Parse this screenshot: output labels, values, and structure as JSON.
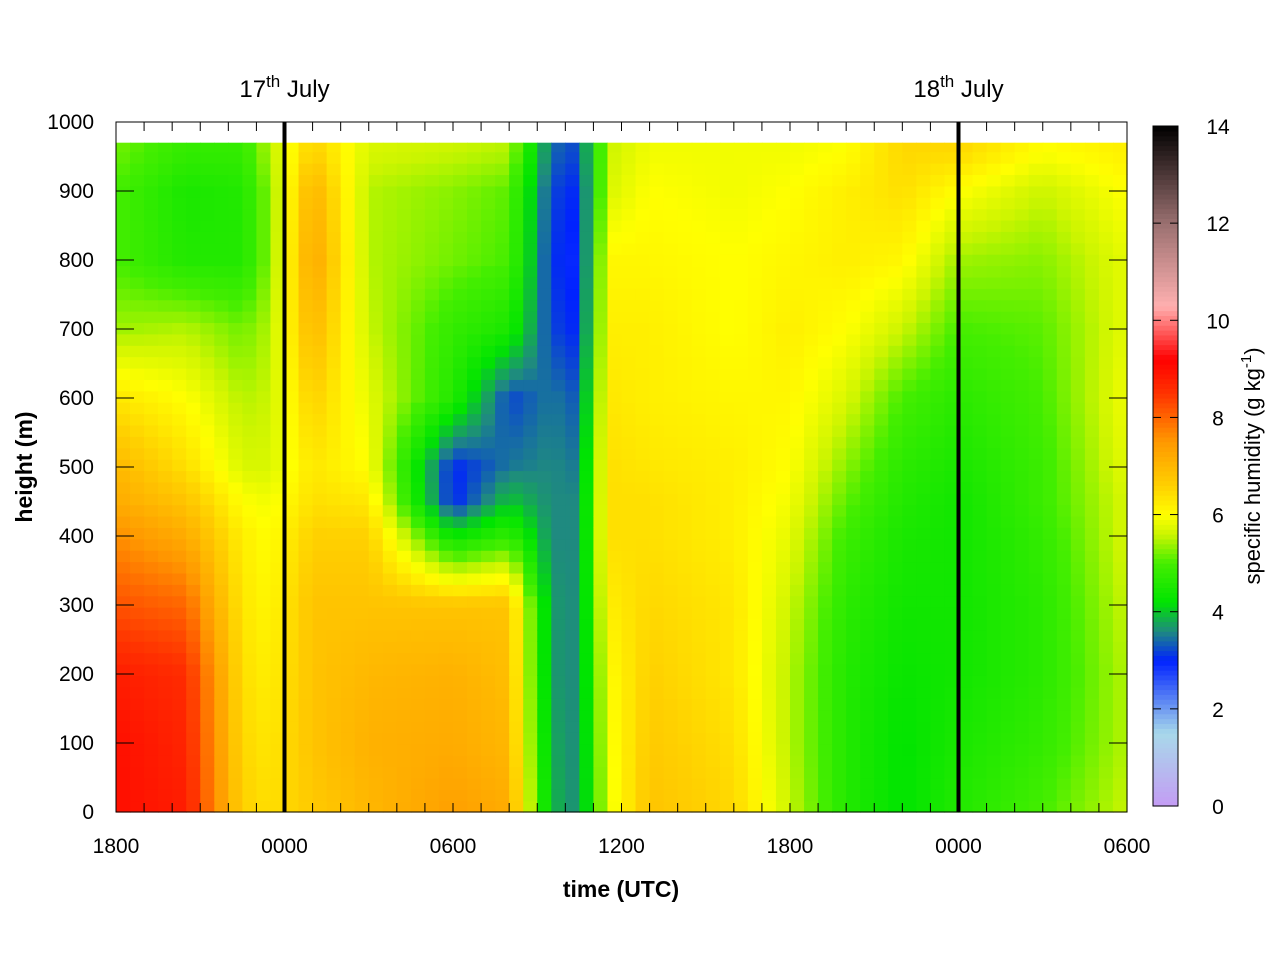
{
  "chart_data": {
    "type": "heatmap",
    "title": "",
    "xlabel": "time (UTC)",
    "ylabel": "height (m)",
    "x_tick_labels": [
      "1800",
      "0000",
      "0600",
      "1200",
      "1800",
      "0000",
      "0600"
    ],
    "x_range_hours": [
      0,
      36
    ],
    "y_ticks": [
      0,
      100,
      200,
      300,
      400,
      500,
      600,
      700,
      800,
      900,
      1000
    ],
    "ylim": [
      0,
      1000
    ],
    "data_top_height": 970,
    "colorbar": {
      "label_prefix": "specific humidity (g kg",
      "label_exponent": "-1",
      "label_suffix": ")",
      "ticks": [
        0,
        2,
        4,
        6,
        8,
        10,
        12,
        14
      ],
      "range": [
        0,
        14
      ],
      "palette": [
        {
          "v": 0,
          "color": "#c49cf4"
        },
        {
          "v": 1.5,
          "color": "#a8d8ea"
        },
        {
          "v": 3,
          "color": "#0022ff"
        },
        {
          "v": 3.6,
          "color": "#1f8a80"
        },
        {
          "v": 4.2,
          "color": "#00e400"
        },
        {
          "v": 5,
          "color": "#44ee00"
        },
        {
          "v": 5.6,
          "color": "#ccf500"
        },
        {
          "v": 6,
          "color": "#ffff00"
        },
        {
          "v": 6.6,
          "color": "#ffd000"
        },
        {
          "v": 7.5,
          "color": "#ff9900"
        },
        {
          "v": 8.5,
          "color": "#ff3300"
        },
        {
          "v": 9.2,
          "color": "#ff0000"
        },
        {
          "v": 10.3,
          "color": "#ffb0b0"
        },
        {
          "v": 12,
          "color": "#9a7070"
        },
        {
          "v": 14,
          "color": "#000000"
        }
      ]
    },
    "date_markers": [
      {
        "hour": 6,
        "day": "17",
        "suffix": "th",
        "month": "July"
      },
      {
        "hour": 30,
        "day": "18",
        "suffix": "th",
        "month": "July"
      }
    ],
    "time_hours": [
      0,
      2.5,
      4.5,
      5.5,
      7,
      9,
      12,
      14,
      15.5,
      16.5,
      17.5,
      19,
      22,
      24,
      26,
      28,
      30,
      33,
      36
    ],
    "humidity_profiles_heights": [
      0,
      100,
      200,
      300,
      400,
      450,
      500,
      600,
      700,
      800,
      900,
      960
    ],
    "humidity_profiles": [
      [
        9.0,
        9.0,
        8.8,
        8.2,
        7.6,
        7.2,
        7.0,
        6.3,
        5.4,
        5.0,
        5.0,
        5.2
      ],
      [
        8.8,
        8.7,
        8.6,
        8.0,
        7.2,
        6.8,
        6.4,
        6.0,
        5.5,
        4.6,
        4.5,
        4.8
      ],
      [
        6.6,
        6.5,
        6.4,
        6.3,
        6.2,
        6.0,
        5.7,
        5.5,
        5.2,
        4.6,
        4.6,
        4.8
      ],
      [
        6.4,
        6.3,
        6.2,
        6.1,
        6.0,
        5.9,
        5.7,
        5.6,
        5.5,
        5.3,
        5.3,
        5.5
      ],
      [
        6.7,
        6.8,
        6.8,
        6.8,
        6.6,
        6.4,
        6.3,
        6.6,
        7.0,
        7.3,
        7.1,
        6.6
      ],
      [
        7.0,
        7.1,
        7.0,
        6.8,
        6.6,
        6.3,
        6.0,
        5.8,
        5.6,
        5.5,
        5.5,
        5.7
      ],
      [
        7.4,
        7.2,
        7.1,
        6.8,
        4.3,
        3.0,
        3.0,
        4.6,
        4.8,
        5.2,
        5.3,
        5.6
      ],
      [
        7.2,
        7.0,
        6.9,
        6.8,
        4.8,
        4.0,
        3.5,
        3.2,
        4.5,
        5.0,
        5.1,
        5.5
      ],
      [
        3.9,
        3.8,
        3.7,
        3.7,
        3.6,
        3.6,
        3.6,
        3.5,
        3.2,
        3.1,
        3.2,
        3.4
      ],
      [
        3.6,
        3.6,
        3.6,
        3.6,
        3.6,
        3.6,
        3.5,
        3.3,
        3.0,
        2.9,
        3.0,
        3.2
      ],
      [
        5.8,
        5.9,
        6.0,
        6.2,
        6.4,
        6.4,
        6.4,
        6.3,
        6.2,
        6.1,
        5.7,
        5.6
      ],
      [
        6.8,
        6.7,
        6.6,
        6.5,
        6.4,
        6.4,
        6.3,
        6.2,
        6.2,
        6.1,
        6.0,
        5.9
      ],
      [
        6.5,
        6.4,
        6.3,
        6.3,
        6.2,
        6.2,
        6.2,
        6.1,
        6.0,
        6.0,
        5.9,
        5.9
      ],
      [
        5.6,
        5.5,
        5.5,
        5.6,
        5.8,
        5.9,
        6.0,
        6.1,
        6.2,
        6.1,
        6.0,
        5.9
      ],
      [
        4.6,
        4.6,
        4.6,
        4.7,
        4.9,
        5.1,
        5.3,
        5.7,
        6.0,
        6.2,
        6.2,
        6.0
      ],
      [
        4.2,
        4.2,
        4.3,
        4.4,
        4.5,
        4.6,
        4.7,
        5.0,
        5.6,
        6.1,
        6.4,
        6.5
      ],
      [
        4.6,
        4.5,
        4.4,
        4.4,
        4.4,
        4.4,
        4.5,
        4.7,
        5.0,
        5.4,
        6.0,
        6.5
      ],
      [
        5.0,
        4.8,
        4.7,
        4.7,
        4.8,
        4.9,
        4.9,
        5.0,
        5.1,
        5.3,
        5.6,
        6.0
      ],
      [
        5.6,
        5.5,
        5.5,
        5.6,
        5.7,
        5.7,
        5.8,
        5.9,
        5.8,
        5.8,
        6.0,
        6.2
      ]
    ]
  }
}
